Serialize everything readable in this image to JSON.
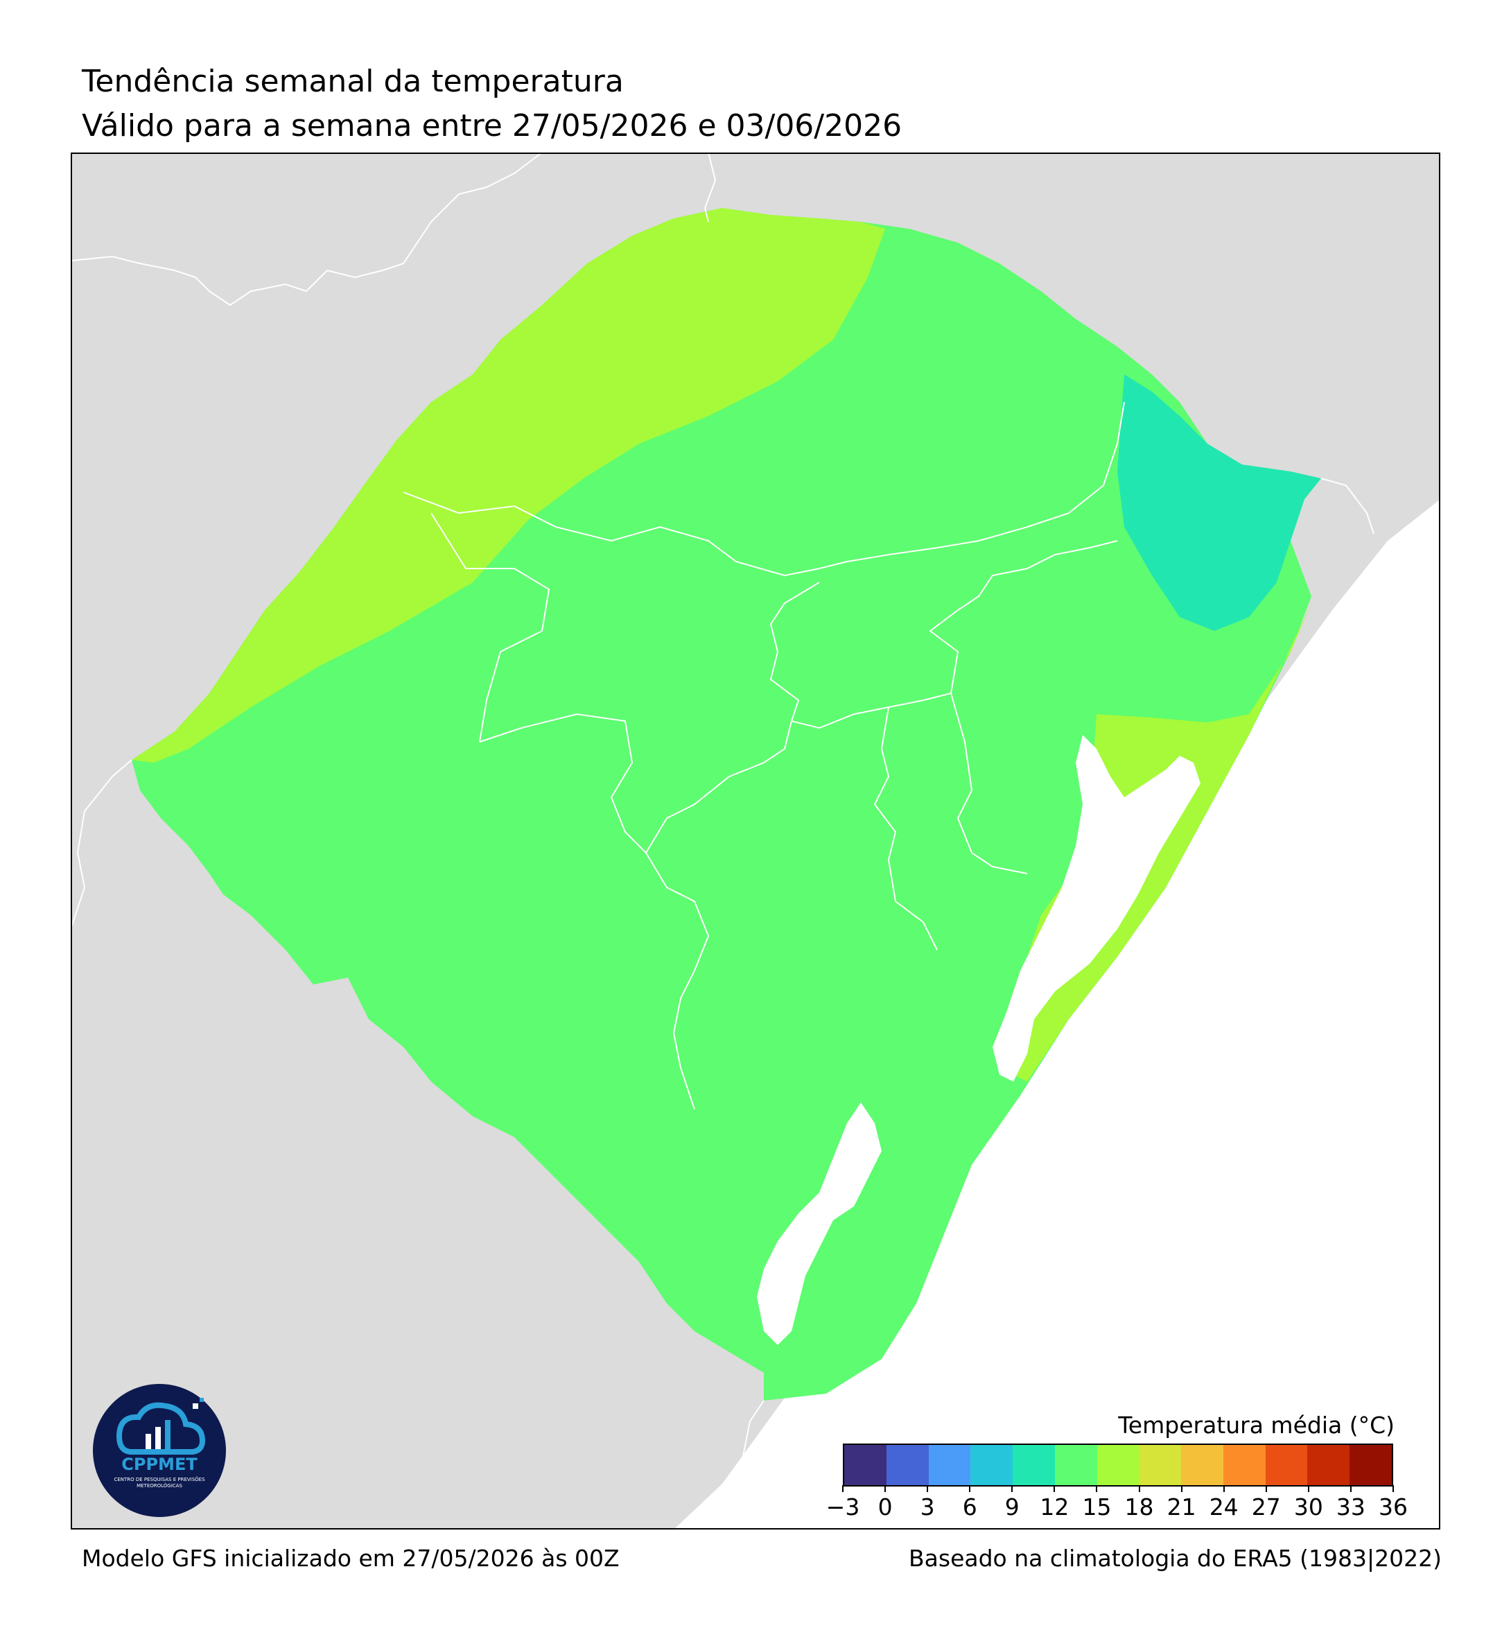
{
  "header": {
    "title": "Tendência semanal da temperatura",
    "subtitle": "Válido para a semana entre 27/05/2026 e 03/06/2026"
  },
  "footer": {
    "model": "Modelo GFS inicializado em 27/05/2026 às 00Z",
    "climatology": "Baseado na climatologia do ERA5 (1983|2022)"
  },
  "legend": {
    "title": "Temperatura média (°C)",
    "ticks": [
      "−3",
      "0",
      "3",
      "6",
      "9",
      "12",
      "15",
      "18",
      "21",
      "24",
      "27",
      "30",
      "33",
      "36"
    ],
    "colors": [
      "#3b2f7e",
      "#4565d6",
      "#4a9cf8",
      "#27c5dc",
      "#22e6b0",
      "#5efc70",
      "#a6fa3a",
      "#d6e43a",
      "#f4c03a",
      "#fb8c28",
      "#ea5014",
      "#c52a04",
      "#961002"
    ]
  },
  "map": {
    "land_color": "#dcdcdc",
    "ocean_color": "#ffffff",
    "border_color": "#ffffff",
    "zone_colors": {
      "12_15": "#5efc70",
      "15_18": "#a6fa3a",
      "9_12": "#22e6b0"
    }
  },
  "logo": {
    "name": "CPPMET",
    "subtitle": "CENTRO DE PESQUISAS E PREVISÕES METEOROLÓGICAS",
    "bg_color": "#0d1a4f",
    "accent_color": "#2a9fd8"
  }
}
